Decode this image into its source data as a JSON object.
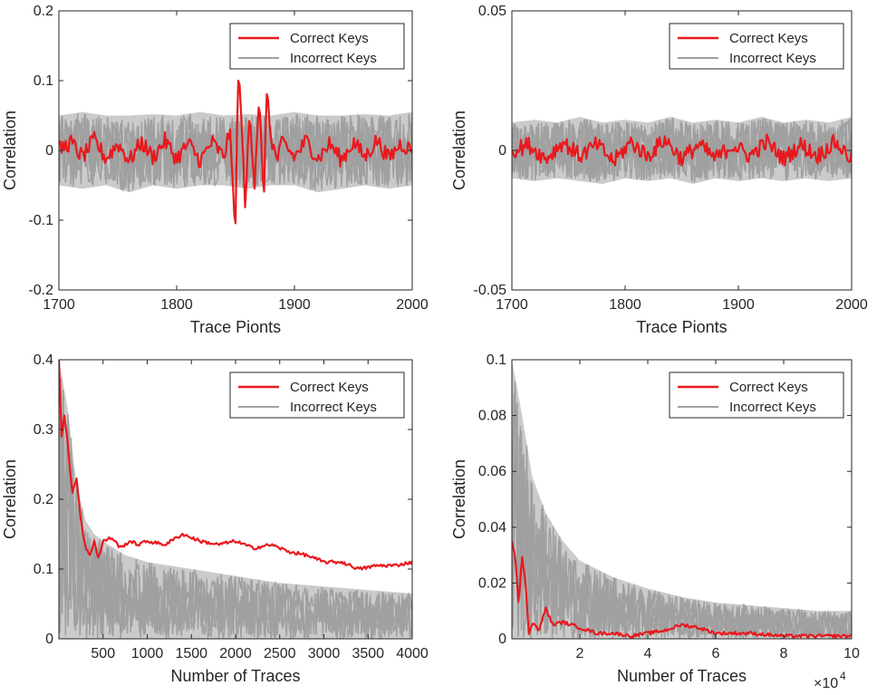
{
  "colors": {
    "correct": "#e8191e",
    "incorrect": "#a0a0a0",
    "axis": "#262626"
  },
  "chart_data": [
    {
      "type": "line",
      "panel": "top-left",
      "xlabel": "Trace Pionts",
      "ylabel": "Correlation",
      "xlim": [
        1700,
        2000
      ],
      "ylim": [
        -0.2,
        0.2
      ],
      "xticks": [
        1700,
        1800,
        1900,
        2000
      ],
      "xtick_labels": [
        "1700",
        "1800",
        "1900",
        "2000"
      ],
      "yticks": [
        -0.2,
        -0.1,
        0,
        0.1,
        0.2
      ],
      "ytick_labels": [
        "-0.2",
        "-0.1",
        "0",
        "0.1",
        "0.2"
      ],
      "legend": {
        "position": "top-right",
        "entries": [
          "Correct Keys",
          "Incorrect Keys"
        ]
      },
      "series": [
        {
          "name": "Incorrect Keys",
          "x": [
            1700,
            1720,
            1740,
            1760,
            1780,
            1800,
            1820,
            1840,
            1860,
            1880,
            1900,
            1920,
            1940,
            1960,
            1980,
            2000
          ],
          "upper": [
            0.05,
            0.055,
            0.05,
            0.05,
            0.052,
            0.05,
            0.055,
            0.05,
            0.052,
            0.05,
            0.055,
            0.05,
            0.05,
            0.052,
            0.05,
            0.055
          ],
          "lower": [
            -0.05,
            -0.055,
            -0.05,
            -0.06,
            -0.05,
            -0.055,
            -0.05,
            -0.05,
            -0.055,
            -0.05,
            -0.05,
            -0.06,
            -0.055,
            -0.05,
            -0.055,
            -0.05
          ]
        },
        {
          "name": "Correct Keys",
          "x": [
            1700,
            1710,
            1720,
            1730,
            1740,
            1750,
            1760,
            1770,
            1780,
            1790,
            1800,
            1810,
            1820,
            1830,
            1840,
            1845,
            1848,
            1850,
            1852,
            1855,
            1858,
            1862,
            1866,
            1870,
            1874,
            1876,
            1880,
            1885,
            1890,
            1900,
            1910,
            1920,
            1930,
            1940,
            1950,
            1960,
            1970,
            1980,
            1990,
            2000
          ],
          "y": [
            0,
            0.012,
            -0.01,
            0.015,
            -0.012,
            0.01,
            -0.015,
            0.012,
            -0.01,
            0.014,
            -0.012,
            0.01,
            -0.015,
            0.012,
            -0.01,
            0.03,
            -0.06,
            -0.108,
            0.108,
            0.06,
            -0.09,
            0.06,
            -0.05,
            0.08,
            -0.086,
            0.09,
            0.02,
            -0.015,
            0.012,
            -0.01,
            0.014,
            -0.012,
            0.01,
            -0.014,
            0.012,
            -0.01,
            0.015,
            -0.012,
            0.01,
            0
          ]
        }
      ]
    },
    {
      "type": "line",
      "panel": "top-right",
      "xlabel": "Trace Pionts",
      "ylabel": "Correlation",
      "xlim": [
        1700,
        2000
      ],
      "ylim": [
        -0.05,
        0.05
      ],
      "xticks": [
        1700,
        1800,
        1900,
        2000
      ],
      "xtick_labels": [
        "1700",
        "1800",
        "1900",
        "2000"
      ],
      "yticks": [
        -0.05,
        0,
        0.05
      ],
      "ytick_labels": [
        "-0.05",
        "0",
        "0.05"
      ],
      "legend": {
        "position": "top-right",
        "entries": [
          "Correct Keys",
          "Incorrect Keys"
        ]
      },
      "series": [
        {
          "name": "Incorrect Keys",
          "x": [
            1700,
            1720,
            1740,
            1760,
            1780,
            1800,
            1820,
            1840,
            1860,
            1880,
            1900,
            1920,
            1940,
            1960,
            1980,
            2000
          ],
          "upper": [
            0.01,
            0.011,
            0.01,
            0.012,
            0.01,
            0.011,
            0.01,
            0.012,
            0.01,
            0.011,
            0.01,
            0.012,
            0.01,
            0.011,
            0.01,
            0.012
          ],
          "lower": [
            -0.01,
            -0.011,
            -0.01,
            -0.011,
            -0.012,
            -0.01,
            -0.011,
            -0.01,
            -0.012,
            -0.01,
            -0.011,
            -0.01,
            -0.011,
            -0.01,
            -0.011,
            -0.01
          ]
        },
        {
          "name": "Correct Keys",
          "x": [
            1700,
            1715,
            1730,
            1745,
            1760,
            1775,
            1790,
            1805,
            1820,
            1835,
            1850,
            1865,
            1880,
            1895,
            1910,
            1925,
            1940,
            1955,
            1970,
            1985,
            2000
          ],
          "y": [
            0,
            0.002,
            -0.003,
            0.003,
            -0.002,
            0.002,
            -0.004,
            0.003,
            -0.002,
            0.004,
            -0.003,
            0.002,
            -0.003,
            0.002,
            -0.002,
            0.003,
            -0.003,
            0.002,
            -0.002,
            0.003,
            -0.003
          ]
        }
      ]
    },
    {
      "type": "line",
      "panel": "bottom-left",
      "xlabel": "Number of Traces",
      "ylabel": "Correlation",
      "xlim": [
        0,
        4000
      ],
      "ylim": [
        0,
        0.4
      ],
      "xticks": [
        500,
        1000,
        1500,
        2000,
        2500,
        3000,
        3500,
        4000
      ],
      "xtick_labels": [
        "500",
        "1000",
        "1500",
        "2000",
        "2500",
        "3000",
        "3500",
        "4000"
      ],
      "yticks": [
        0,
        0.1,
        0.2,
        0.3,
        0.4
      ],
      "ytick_labels": [
        "0",
        "0.1",
        "0.2",
        "0.3",
        "0.4"
      ],
      "legend": {
        "position": "top-right",
        "entries": [
          "Correct Keys",
          "Incorrect Keys"
        ]
      },
      "series": [
        {
          "name": "Incorrect Keys",
          "x": [
            0,
            100,
            200,
            300,
            400,
            500,
            750,
            1000,
            1500,
            2000,
            2500,
            3000,
            3500,
            4000
          ],
          "upper": [
            0.4,
            0.33,
            0.22,
            0.17,
            0.15,
            0.14,
            0.12,
            0.11,
            0.1,
            0.09,
            0.08,
            0.075,
            0.07,
            0.065
          ],
          "lower": [
            0,
            0,
            0,
            0,
            0,
            0,
            0,
            0,
            0,
            0,
            0,
            0,
            0,
            0
          ]
        },
        {
          "name": "Correct Keys",
          "x": [
            0,
            30,
            60,
            100,
            150,
            200,
            250,
            300,
            350,
            400,
            450,
            500,
            600,
            700,
            800,
            900,
            1000,
            1200,
            1400,
            1600,
            1800,
            2000,
            2200,
            2400,
            2600,
            2800,
            3000,
            3200,
            3400,
            3600,
            3800,
            4000
          ],
          "y": [
            0.4,
            0.29,
            0.32,
            0.28,
            0.21,
            0.23,
            0.17,
            0.13,
            0.12,
            0.14,
            0.115,
            0.14,
            0.145,
            0.13,
            0.14,
            0.135,
            0.14,
            0.135,
            0.15,
            0.14,
            0.135,
            0.14,
            0.13,
            0.135,
            0.125,
            0.12,
            0.11,
            0.11,
            0.1,
            0.105,
            0.105,
            0.11
          ]
        }
      ]
    },
    {
      "type": "line",
      "panel": "bottom-right",
      "xlabel": "Number of Traces",
      "ylabel": "Correlation",
      "xlim": [
        0,
        10
      ],
      "ylim": [
        0,
        0.1
      ],
      "x_multiplier": "×10",
      "x_multiplier_exp": "4",
      "xticks": [
        2,
        4,
        6,
        8,
        10
      ],
      "xtick_labels": [
        "2",
        "4",
        "6",
        "8",
        "10"
      ],
      "yticks": [
        0,
        0.02,
        0.04,
        0.06,
        0.08,
        0.1
      ],
      "ytick_labels": [
        "0",
        "0.02",
        "0.04",
        "0.06",
        "0.08",
        "0.1"
      ],
      "legend": {
        "position": "top-right",
        "entries": [
          "Correct Keys",
          "Incorrect Keys"
        ]
      },
      "series": [
        {
          "name": "Incorrect Keys",
          "x": [
            0,
            0.3,
            0.6,
            1,
            1.5,
            2,
            2.5,
            3,
            4,
            5,
            6,
            7,
            8,
            9,
            10
          ],
          "upper": [
            0.1,
            0.08,
            0.058,
            0.045,
            0.035,
            0.028,
            0.025,
            0.022,
            0.018,
            0.015,
            0.013,
            0.012,
            0.011,
            0.01,
            0.01
          ],
          "lower": [
            0,
            0,
            0,
            0,
            0,
            0,
            0,
            0,
            0,
            0,
            0,
            0,
            0,
            0,
            0
          ]
        },
        {
          "name": "Correct Keys",
          "x": [
            0,
            0.1,
            0.2,
            0.3,
            0.4,
            0.5,
            0.6,
            0.8,
            1,
            1.2,
            1.5,
            2,
            2.5,
            3,
            3.5,
            4,
            4.5,
            5,
            5.5,
            6,
            7,
            8,
            9,
            10
          ],
          "y": [
            0.035,
            0.03,
            0.012,
            0.03,
            0.02,
            0.002,
            0.006,
            0.003,
            0.011,
            0.005,
            0.006,
            0.004,
            0.002,
            0.002,
            0.001,
            0.002,
            0.003,
            0.005,
            0.004,
            0.002,
            0.002,
            0.001,
            0.001,
            0.001
          ]
        }
      ]
    }
  ]
}
